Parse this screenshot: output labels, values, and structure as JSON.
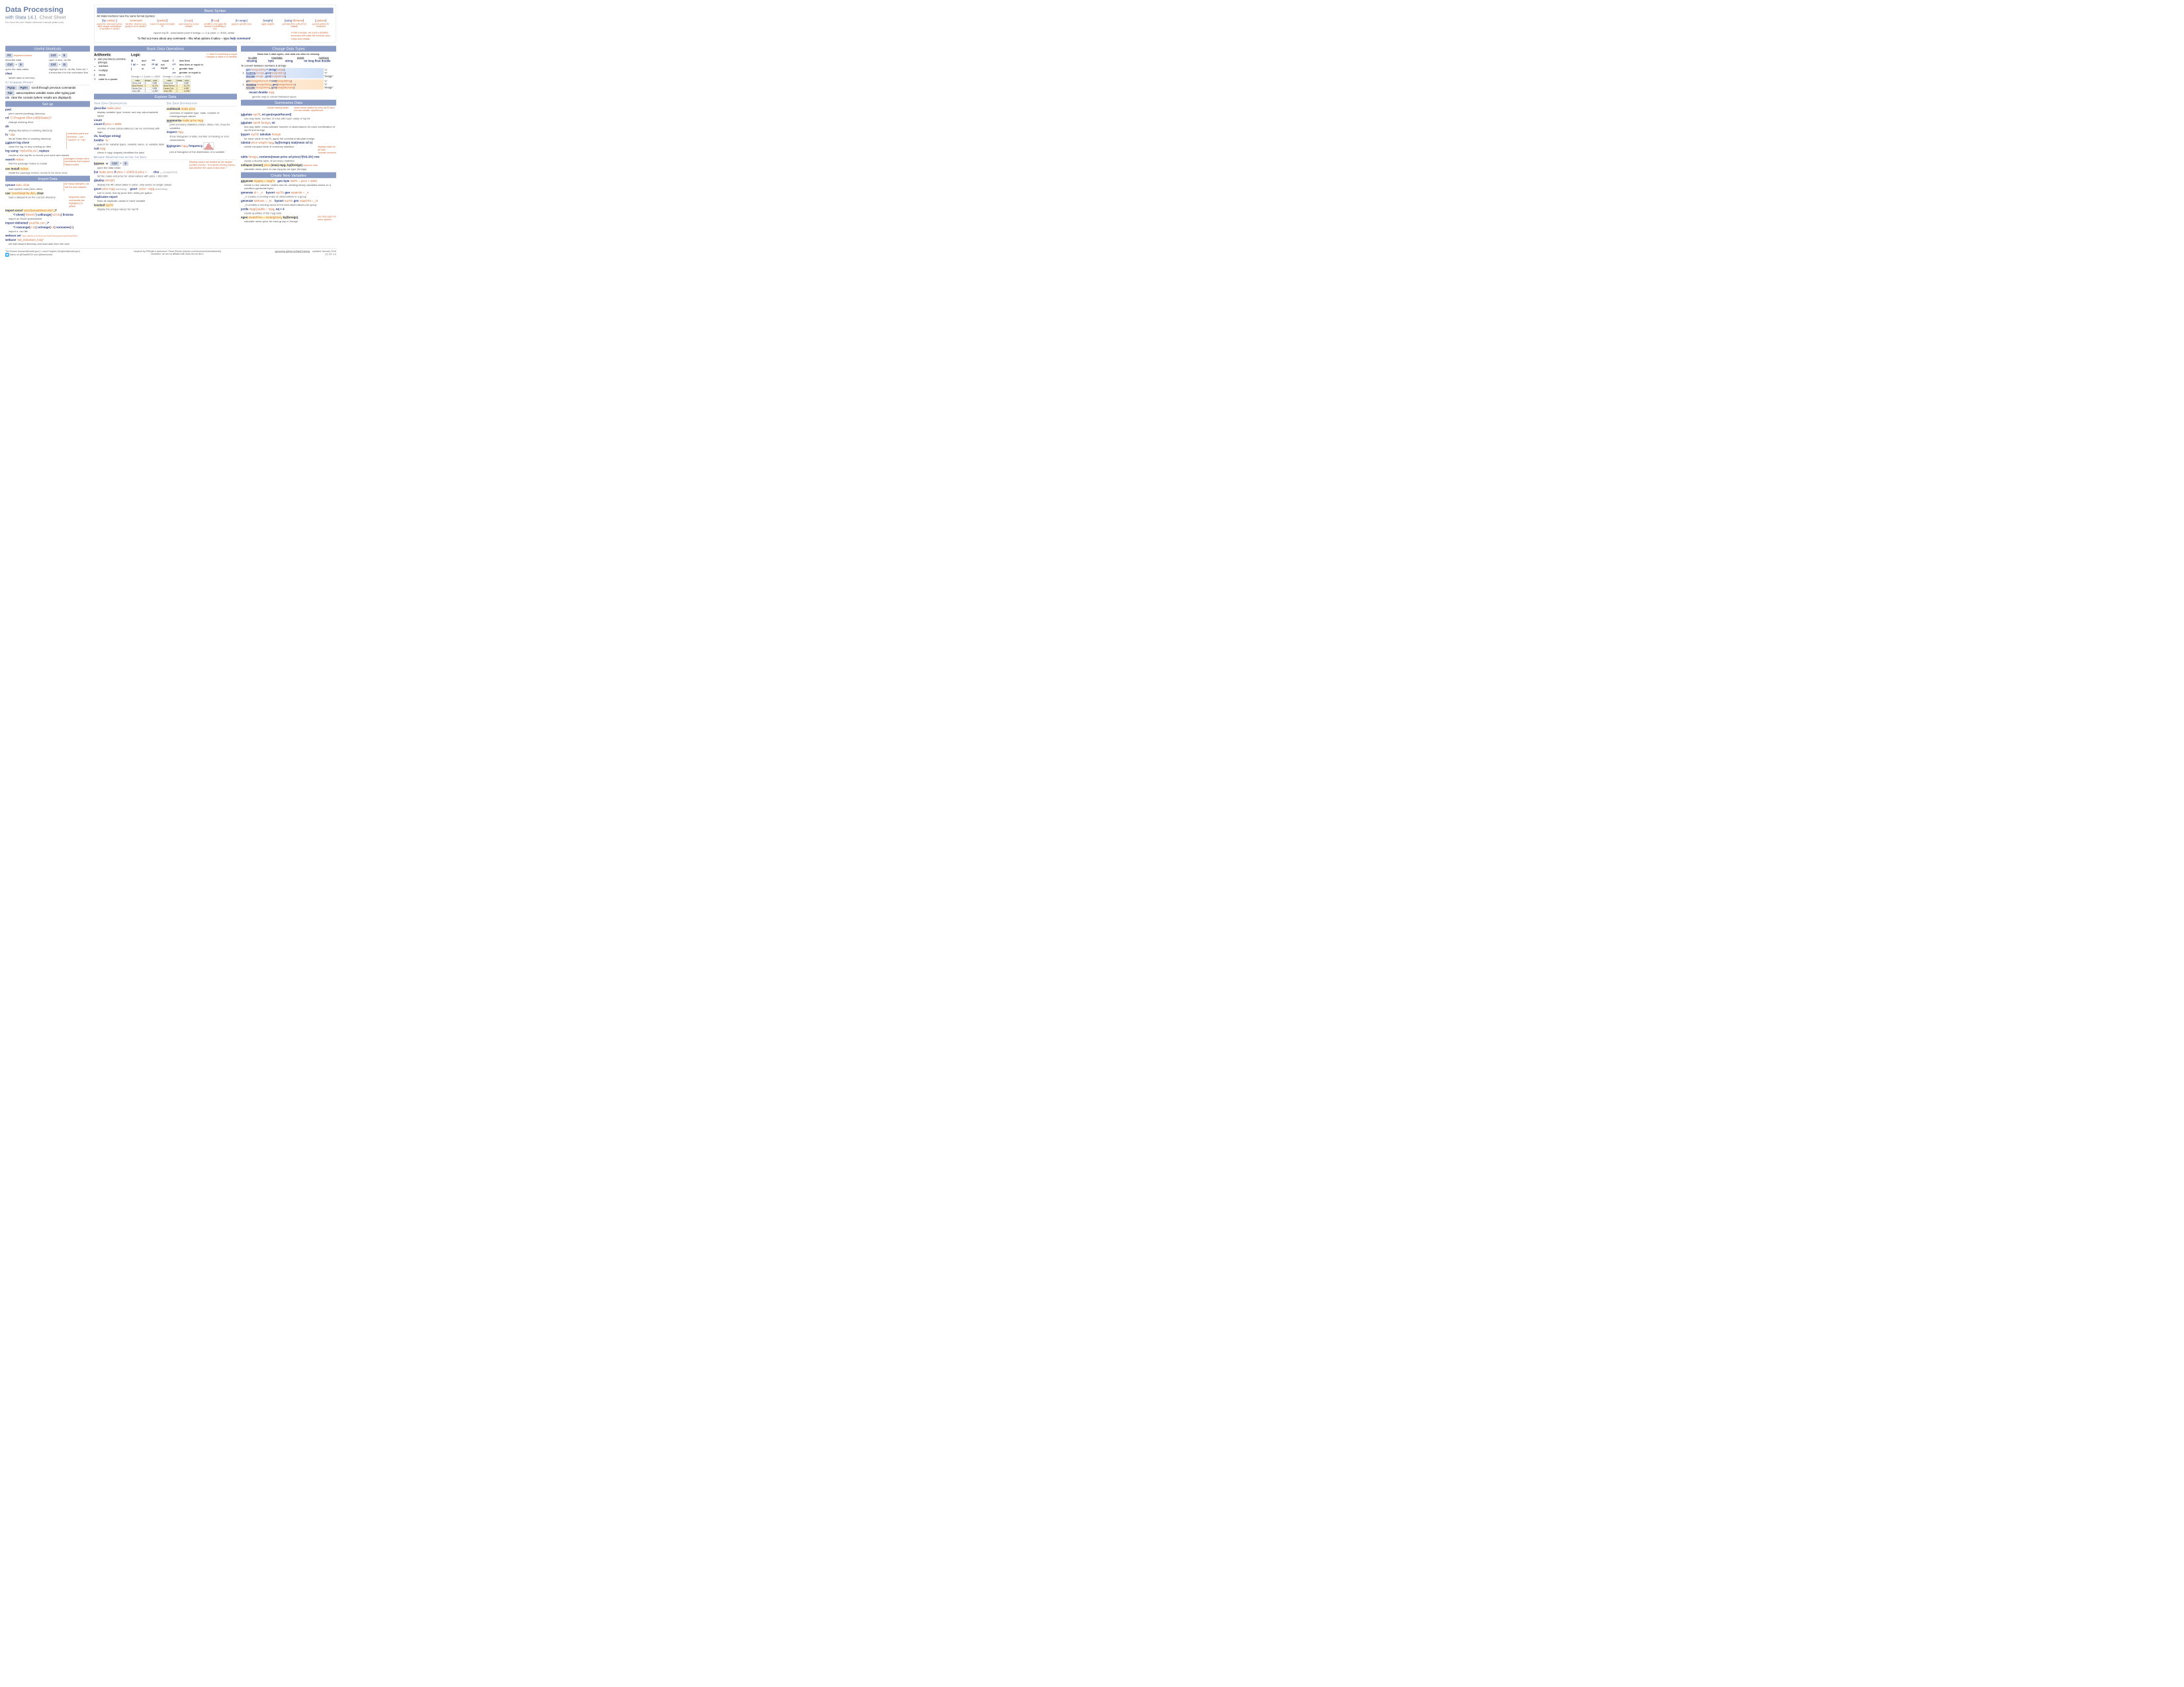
{
  "title": {
    "main": "Data Processing",
    "sub1": "with Stata 14.1",
    "sub2": "Cheat Sheet",
    "ref": "For more info see Stata's reference manual (stata.com)"
  },
  "sections": {
    "shortcuts": "Useful Shortcuts",
    "setup": "Set up",
    "import": "Import Data",
    "syntax": "Basic Syntax",
    "ops": "Basic Data Operations",
    "types": "Change Data Types",
    "explore": "Explore Data",
    "summarize": "Summarize Data",
    "newvar": "Create New Variables"
  },
  "shortcuts": {
    "f2": "F2",
    "f2_note": "keyboard buttons",
    "f2_desc": "describe data",
    "c9a": "Ctrl",
    "plus": "+",
    "c9b": "9",
    "c9_desc": "open a new .do file",
    "c8a": "Ctrl",
    "c8b": "8",
    "c8_desc": "open the data editor",
    "cda": "Ctrl",
    "cdb": "D",
    "cd_desc": "highlight text in .do file, then ctrl + d executes it in the command line",
    "clear": "clear",
    "clear_desc": "delete data in memory",
    "prompt_head": "At Command Prompt",
    "pgup": "PgUp",
    "pgdn": "PgDn",
    "pg_desc": "scroll through previous commands",
    "tab": "Tab",
    "tab_desc": "autocompletes variable name after typing part",
    "cls": "cls",
    "cls_desc": "clear the console (where results are displayed)"
  },
  "setup": {
    "pwd": "pwd",
    "pwd_desc": "print current (working) directory",
    "cd": "cd",
    "cd_arg": "\"C:\\Program Files (x86)\\Stata13\"",
    "cd_desc": "change working drive",
    "dir": "dir",
    "dir_desc": "display filenames in working directory",
    "fs": "fs",
    "fs_arg": "*.dta",
    "fs_desc": "list all Stata files in working directory",
    "fs_note": "underlined parts are shortcuts – use \"capture\" or \"cap\"",
    "caplog": "capture log close",
    "caplog_desc": "close the log on any existing do files",
    "log": "log using",
    "log_arg": "\"myDoFile.do\"",
    "log_opt": ", replace",
    "log_desc": "create a new log file to record your work and results",
    "search": "search",
    "search_arg": "mdesc",
    "search_desc": "find the package mdesc to install",
    "search_note": "packages contain extra commands that expand Stata's toolkit",
    "ssc": "ssc install",
    "ssc_arg": "mdesc",
    "ssc_desc": "install the package mdesc; needs to be done once"
  },
  "import": {
    "sysuse": "sysuse",
    "sysuse_arg": "auto, clear",
    "sysuse_desc": "load system data (Auto data)",
    "sysuse_note": "for many examples, we use the auto dataset.",
    "use": "use",
    "use_arg": "\"yourStataFile.dta\"",
    "use_opt": ", clear",
    "use_desc": "load a dataset from the current directory",
    "use_note": "frequently used commands are highlighted in yellow",
    "excel": "import excel",
    "excel_arg": "\"yourSpreadsheet.xlsx\"",
    "excel_opt": ", /*",
    "excel_line2": "*/ sheet(\"Sheet1\") cellrange(A2:H11) firstrow",
    "excel_desc": "import an Excel spreadsheet",
    "delim": "import delimited",
    "delim_arg": "\"yourFile.csv\"",
    "delim_opt": ", /*",
    "delim_line2a": "*/ rowrange(",
    "delim_line2b": "2:11",
    "delim_line2c": ") colrange(",
    "delim_line2d": "1:8",
    "delim_line2e": ") varnames(",
    "delim_line2f": "2",
    "delim_line2g": ")",
    "delim_desc": "import a .csv file",
    "webset": "webuse set",
    "webset_arg": "\"https://github.com/GeoCenter/StataTraining/raw/master/Day2/Data\"",
    "webuse": "webuse",
    "webuse_arg": "\"wb_indicators_long\"",
    "web_desc": "set web-based directory and load data from the web"
  },
  "syntax": {
    "intro": "All Stata functions have the same format (syntax):",
    "parts": [
      {
        "label": "[by varlist1:]",
        "desc": "apply the command across each unique combination of variables in varlist1"
      },
      {
        "label": "command",
        "desc": "function: what are you going to do to varlists?"
      },
      {
        "label": "[varlist2]",
        "desc": "column to apply command to"
      },
      {
        "label": "[=exp]",
        "desc": "save output as a new variable"
      },
      {
        "label": "[if exp]",
        "desc": "condition: only apply the function if something is true"
      },
      {
        "label": "[in range]",
        "desc": "apply to specific rows"
      },
      {
        "label": "[weight]",
        "desc": "apply weights"
      },
      {
        "label": "[using filename]",
        "desc": "pull data from a file (if not loaded)"
      },
      {
        "label": "[,options]",
        "desc": "special options for command"
      }
    ],
    "example": "bysort rep78 : summarize     price     if foreign == 0 & price <= 9000, detail",
    "ex_note": "In this example, we want a detailed summary with stats like kurtosis, plus mean and median",
    "help": "To find out more about any command – like what options it takes – type",
    "help_cmd": "help command"
  },
  "ops": {
    "arith_h": "Arithmetic",
    "logic_h": "Logic",
    "eq_note": "== tests if something is equal\n= assigns a value to a variable",
    "arith": [
      {
        "op": "+",
        "desc": "add (numbers) combine (strings)"
      },
      {
        "op": "−",
        "desc": "subtract"
      },
      {
        "op": "*",
        "desc": "multiply"
      },
      {
        "op": "/",
        "desc": "divide"
      },
      {
        "op": "^",
        "desc": "raise to a power"
      }
    ],
    "logic1": [
      {
        "op": "&",
        "desc": "and"
      },
      {
        "op": "! or ~",
        "desc": "not"
      },
      {
        "op": "|",
        "desc": "or"
      }
    ],
    "logic2": [
      {
        "op": "==",
        "desc": "equal"
      },
      {
        "op": "!= or ~=",
        "desc": "not equal"
      }
    ],
    "logic3": [
      {
        "op": "<",
        "desc": "less than"
      },
      {
        "op": "<=",
        "desc": "less than or equal to"
      },
      {
        "op": ">",
        "desc": "greater than"
      },
      {
        "op": ">=",
        "desc": "greater or equal to"
      }
    ],
    "ex1": "if foreign != 1 & price >= 10000",
    "ex2": "if foreign != 1 | price >= 10000",
    "table": {
      "headers": [
        "make",
        "foreign",
        "price"
      ],
      "rows1": [
        [
          "Chevy Colt",
          "0",
          "3,984"
        ],
        [
          "Buick Riviera",
          "0",
          "10,372"
        ],
        [
          "Honda Civic",
          "1",
          "4,499"
        ],
        [
          "Volvo 260",
          "1",
          "11,995"
        ]
      ],
      "rows2": [
        [
          "Chevy Colt",
          "0",
          "3,984"
        ],
        [
          "Buick Riviera",
          "0",
          "10,372"
        ],
        [
          "Honda Civic",
          "1",
          "4,499"
        ],
        [
          "Volvo 260",
          "1",
          "11,995"
        ]
      ]
    }
  },
  "types": {
    "intro": "Stata has 6 data types, and data can also be missing:",
    "heads": [
      "no data",
      "true/false",
      "words",
      "numbers"
    ],
    "vals": [
      "missing",
      "byte",
      "string",
      "int long float double"
    ],
    "convert": "To convert between numbers & strings:",
    "r1a": "gen foreignString = string(foreign)",
    "r1b": "tostring foreign, gen(foreignString)",
    "r1c": "decode foreign , gen(foreignString)",
    "r1_in": "1",
    "r1_out1": "\"1\"",
    "r1_out2": "\"1\"",
    "r1_out3": "\"foreign\"",
    "r2a": "gen foreignNumeric = real(foreignString)",
    "r2b": "destring foreignString, gen(foreignNumeric)",
    "r2c": "encode foreignString, gen(foreignNumeric)",
    "r2_in": "1",
    "r2_out1": "\"1\"",
    "r2_out2": "\"1\"",
    "r2_out3": "\"foreign\"",
    "recast": "recast double",
    "recast_arg": "mpg",
    "recast_desc": "generic way to convert between types"
  },
  "explore": {
    "org_h": "View Data Organization",
    "dist_h": "See Data Distribution",
    "browse_h": "Browse Observations within the Data",
    "describe": "describe",
    "describe_arg": "make price",
    "describe_desc": "display variable type, format, and any value/variable labels",
    "count": "count",
    "countif": "count if",
    "countif_arg": "price > 5000",
    "count_desc": "number of rows (observations) Can be combined with logic",
    "ds": "ds, has(type string)",
    "lookfor": "lookfor",
    "lookfor_arg": "\"in.\"",
    "ds_desc": "search for variable types, variable name, or variable label",
    "isid": "isid",
    "isid_arg": "mpg",
    "isid_desc": "check if mpg uniquely identifies the data",
    "codebook": "codebook",
    "codebook_arg": "make price",
    "codebook_desc": "overview of variable type, stats, number of missing/unique values",
    "summarize": "summarize",
    "summarize_arg": "make price mpg",
    "summarize_desc": "print summary statistics (mean, stdev, min, max) for variables",
    "inspect": "inspect",
    "inspect_arg": "mpg",
    "inspect_desc": "show histogram of data, number of missing or zero observations",
    "hist": "histogram",
    "hist_arg": "mpg",
    "hist_opt": ", frequency",
    "hist_desc": "plot a histogram of the distribution of a variable",
    "browse": "browse",
    "browse_or": "or",
    "browse_k1": "Ctrl",
    "browse_plus": "+",
    "browse_k2": "8",
    "browse_desc": "open the data editor",
    "browse_note": "Missing values are treated as the largest positive number. To exclude missing values, ask whether the value is less than \".\"",
    "list": "list",
    "list_arg": "make price",
    "list_if": "if",
    "list_cond": "price > 10000 & price < .",
    "clist": "clist",
    "clist_dots": "...",
    "clist_note": "(compact form)",
    "list_desc": "list the make and price for observations with price > $10,000",
    "display": "display",
    "display_arg": "price[4]",
    "display_desc": "display the 4th observation in price; only works on single values",
    "gsort1": "gsort",
    "gsort1_arg": "price mpg",
    "gsort1_note": "(ascending)",
    "gsort2": "gsort",
    "gsort2_arg": "−price −mpg",
    "gsort2_note": "(descending)",
    "gsort_desc": "sort in order, first by price then miles per gallon",
    "dup": "duplicates report",
    "dup_desc": "finds all duplicate values in each variable",
    "levelsof": "levelsof",
    "levelsof_arg": "rep78",
    "levelsof_desc": "display the unique values for rep78"
  },
  "summarize": {
    "note1": "include missing values",
    "note2": "create binary variable for every rep78 value in a new variable, repairRecord",
    "tab1": "tabulate",
    "tab1_arg": "rep78",
    "tab1_opt": ", mi gen(repairRecord)",
    "tab1_desc": "one-way table: number of rows with each value of rep78",
    "tab2": "tabulate",
    "tab2_arg": "rep78 foreign",
    "tab2_opt": ", mi",
    "tab2_desc": "two-way table: cross-tabulate number of observations for each combination of rep78 and foreign",
    "bysort": "bysort",
    "bysort_arg": "rep78",
    "bysort_cmd": ": tabulate",
    "bysort_arg2": "foreign",
    "bysort_desc": "for each value of rep78, apply the command tabulate foreign",
    "tabstat": "tabstat",
    "tabstat_arg": "price weight mpg",
    "tabstat_opt": ", by(foreign) stat(mean sd n)",
    "tabstat_desc": "create compact table of summary statistics",
    "tabstat_note": "displays stats for all data",
    "table": "table",
    "table_arg": "foreign",
    "table_opt": ", contents(mean price sd price) f(%9.2fc) row",
    "table_note": "formats numbers",
    "table_desc": "create a flexible table of summary statistics",
    "collapse": "collapse (mean)",
    "collapse_arg": "price",
    "collapse_opt": "(max) mpg, by(foreign)",
    "collapse_note": "replaces data",
    "collapse_desc": "calculate mean price & max mpg by car type (foreign)"
  },
  "newvar": {
    "gen1": "generate",
    "gen1_arg": "mpgSq = mpg^2",
    "gen1b": "gen byte",
    "gen1b_arg": "lowPr = price < 4000",
    "gen1_desc": "create a new variable. Useful also for creating binary variables based on a condition (generate byte)",
    "gen2": "generate",
    "gen2_arg": "id = _n",
    "gen2b": "bysort",
    "gen2b_arg": "rep78",
    "gen2b_cmd": ": gen",
    "gen2b_arg2": "repairIdx = _n",
    "gen2_desc": "_n creates a running index of observations in a group",
    "gen3": "generate",
    "gen3_arg": "totRows = _N",
    "gen3b": "bysort",
    "gen3b_arg": "rep78",
    "gen3b_cmd": ": gen",
    "gen3b_arg2": "repairTot = _N",
    "gen3_desc": "_N creates a running count of the total observations per group",
    "pctile": "pctile",
    "pctile_arg": "mpgQuartile = mpg",
    "pctile_opt": ", nq = 4",
    "pctile_desc": "create quartiles of the mpg data",
    "egen": "egen",
    "egen_arg": "meanPrice = mean(price)",
    "egen_opt": ", by(foreign)",
    "egen_note": "see help egen for more options",
    "egen_desc": "calculate mean price for each group in foreign"
  },
  "footer": {
    "authors": "Tim Essam (tessam@usaid.gov) • Laura Hughes (lhughes@usaid.gov)",
    "follow": "follow us @StataRGIS and @flaneuseks",
    "inspired": "inspired by RStudio's awesome Cheat Sheets (rstudio.com/resources/cheatsheets)",
    "disclaimer": "Disclaimer: we are not affiliated with Stata. But we like it.",
    "link": "geocenter.github.io/StataTraining",
    "updated": "updated January 2016",
    "license": "CC BY 4.0"
  }
}
